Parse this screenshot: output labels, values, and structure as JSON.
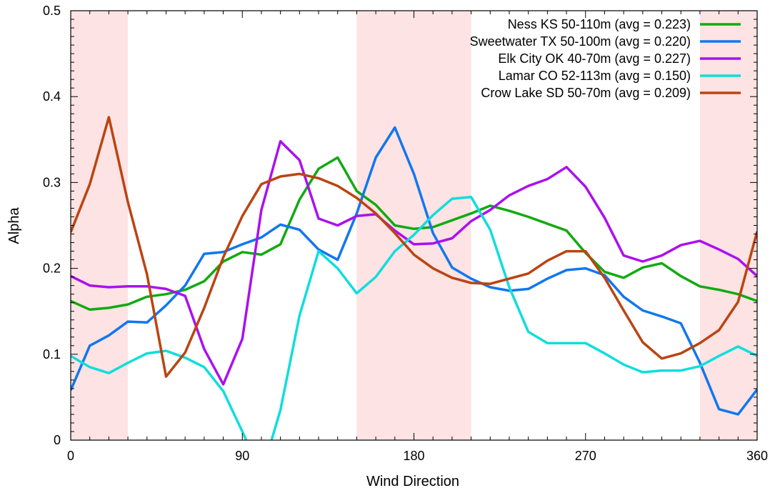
{
  "chart_data": {
    "type": "line",
    "xlabel": "Wind Direction",
    "ylabel": "Alpha",
    "xlim": [
      0,
      360
    ],
    "ylim": [
      0,
      0.5
    ],
    "xticks": [
      0,
      90,
      180,
      270,
      360
    ],
    "yticks": [
      0,
      0.1,
      0.2,
      0.3,
      0.4,
      0.5
    ],
    "xtick_labels": [
      "0",
      "90",
      "180",
      "270",
      "360"
    ],
    "ytick_labels": [
      "0",
      "0.1",
      "0.2",
      "0.3",
      "0.4",
      "0.5"
    ],
    "grid": false,
    "legend_position": "top-right",
    "shaded_ranges": [
      [
        0,
        30
      ],
      [
        150,
        210
      ],
      [
        330,
        360
      ]
    ],
    "shade_color": "#fde3e3",
    "x": [
      0,
      10,
      20,
      30,
      40,
      50,
      60,
      70,
      80,
      90,
      100,
      110,
      120,
      130,
      140,
      150,
      160,
      170,
      180,
      190,
      200,
      210,
      220,
      230,
      240,
      250,
      260,
      270,
      280,
      290,
      300,
      310,
      320,
      330,
      340,
      350,
      360
    ],
    "series": [
      {
        "name": "Ness KS 50-110m (avg = 0.223)",
        "color": "#11aa11",
        "values": [
          0.162,
          0.152,
          0.154,
          0.158,
          0.167,
          0.17,
          0.175,
          0.185,
          0.208,
          0.219,
          0.216,
          0.228,
          0.28,
          0.316,
          0.329,
          0.29,
          0.274,
          0.25,
          0.246,
          0.248,
          0.256,
          0.264,
          0.273,
          0.267,
          0.26,
          0.252,
          0.244,
          0.218,
          0.196,
          0.189,
          0.201,
          0.206,
          0.191,
          0.179,
          0.175,
          0.17,
          0.162
        ]
      },
      {
        "name": "Sweetwater TX 50-100m (avg = 0.220)",
        "color": "#1177ee",
        "values": [
          0.058,
          0.11,
          0.122,
          0.138,
          0.137,
          0.157,
          0.18,
          0.217,
          0.219,
          0.228,
          0.236,
          0.251,
          0.245,
          0.222,
          0.21,
          0.264,
          0.329,
          0.364,
          0.31,
          0.241,
          0.201,
          0.188,
          0.178,
          0.174,
          0.176,
          0.188,
          0.198,
          0.2,
          0.192,
          0.167,
          0.151,
          0.144,
          0.136,
          0.09,
          0.036,
          0.03,
          0.059
        ]
      },
      {
        "name": "Elk City OK 40-70m (avg = 0.227)",
        "color": "#aa11ee",
        "values": [
          0.191,
          0.18,
          0.178,
          0.179,
          0.179,
          0.176,
          0.168,
          0.106,
          0.065,
          0.118,
          0.268,
          0.348,
          0.326,
          0.258,
          0.25,
          0.261,
          0.263,
          0.244,
          0.228,
          0.229,
          0.235,
          0.255,
          0.268,
          0.285,
          0.296,
          0.304,
          0.318,
          0.295,
          0.259,
          0.215,
          0.208,
          0.215,
          0.227,
          0.232,
          0.222,
          0.211,
          0.191
        ]
      },
      {
        "name": "Lamar CO  52-113m (avg = 0.150)",
        "color": "#11dddd",
        "values": [
          0.098,
          0.085,
          0.078,
          0.09,
          0.101,
          0.104,
          0.096,
          0.085,
          0.057,
          0.01,
          -0.04,
          0.035,
          0.145,
          0.22,
          0.2,
          0.171,
          0.19,
          0.22,
          0.239,
          0.262,
          0.281,
          0.283,
          0.245,
          0.178,
          0.126,
          0.113,
          0.113,
          0.113,
          0.101,
          0.088,
          0.079,
          0.081,
          0.081,
          0.086,
          0.098,
          0.109,
          0.098
        ]
      },
      {
        "name": "Crow Lake SD 50-70m (avg = 0.209)",
        "color": "#bb4411",
        "values": [
          0.242,
          0.298,
          0.376,
          0.277,
          0.193,
          0.074,
          0.102,
          0.154,
          0.213,
          0.261,
          0.298,
          0.307,
          0.31,
          0.305,
          0.296,
          0.282,
          0.264,
          0.241,
          0.216,
          0.2,
          0.189,
          0.183,
          0.182,
          0.188,
          0.194,
          0.209,
          0.22,
          0.22,
          0.189,
          0.151,
          0.114,
          0.095,
          0.101,
          0.113,
          0.128,
          0.161,
          0.243
        ]
      }
    ]
  }
}
